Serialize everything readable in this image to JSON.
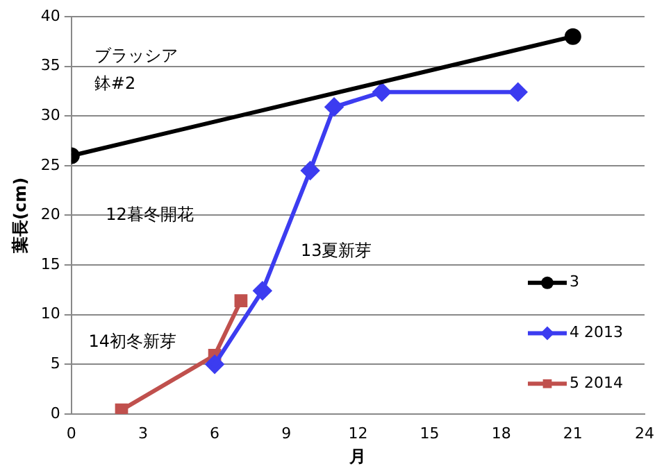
{
  "chart_data": {
    "type": "line",
    "xlabel": "月",
    "ylabel": "葉長(cm)",
    "xlim": [
      0,
      24
    ],
    "xticks": [
      0,
      3,
      6,
      9,
      12,
      15,
      18,
      21,
      24
    ],
    "ylim": [
      0,
      40
    ],
    "yticks": [
      0,
      5,
      10,
      15,
      20,
      25,
      30,
      35,
      40
    ],
    "grid": "y",
    "legend": "right",
    "annotations": [
      "ブラッシア",
      "鉢#2",
      "12暮冬開花",
      "13夏新芽",
      "14初冬新芽"
    ],
    "series": [
      {
        "name": "3",
        "color": "#000000",
        "marker": "circle",
        "x": [
          0,
          21
        ],
        "values": [
          26,
          38
        ]
      },
      {
        "name": "4 2013",
        "color": "#3c3cf0",
        "marker": "diamond",
        "x": [
          6,
          8,
          10,
          11,
          13,
          18.7
        ],
        "values": [
          5,
          12.4,
          24.5,
          30.9,
          32.4,
          32.4
        ]
      },
      {
        "name": "5 2014",
        "color": "#c0504d",
        "marker": "square",
        "x": [
          2.1,
          6,
          7.1
        ],
        "values": [
          0.4,
          5.9,
          11.4
        ]
      }
    ]
  }
}
